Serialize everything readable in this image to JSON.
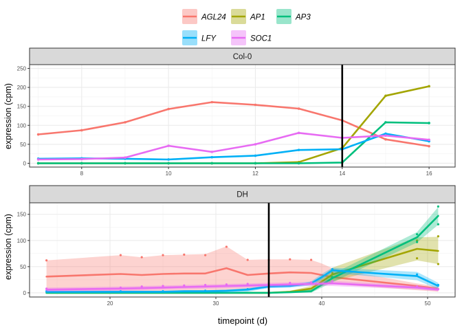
{
  "chart_data": {
    "type": "line",
    "legend": {
      "position": "top",
      "entries": [
        {
          "name": "AGL24",
          "color": "#F8766D"
        },
        {
          "name": "AP1",
          "color": "#A3A500"
        },
        {
          "name": "AP3",
          "color": "#00BF7D"
        },
        {
          "name": "LFY",
          "color": "#00B0F6"
        },
        {
          "name": "SOC1",
          "color": "#E76BF3"
        }
      ]
    },
    "xlabel": "timepoint (d)",
    "ylabel": "expression (cpm)",
    "panels": [
      {
        "title": "Col-0",
        "xlim": [
          6.8,
          16.6
        ],
        "ylim": [
          -10,
          260
        ],
        "xticks": [
          8,
          10,
          12,
          14,
          16
        ],
        "yticks": [
          0,
          50,
          100,
          150,
          200,
          250
        ],
        "vline": 14,
        "x": [
          7,
          8,
          9,
          10,
          11,
          12,
          13,
          14,
          15,
          16
        ],
        "series": [
          {
            "name": "AGL24",
            "values": [
              76,
              87,
              108,
              143,
              161,
              154,
              144,
              113,
              63,
              45
            ]
          },
          {
            "name": "AP1",
            "values": [
              0,
              0,
              0,
              0,
              0,
              0,
              3,
              40,
              178,
              203
            ]
          },
          {
            "name": "AP3",
            "values": [
              0,
              0,
              0,
              0,
              0,
              0,
              0,
              2,
              108,
              106
            ]
          },
          {
            "name": "LFY",
            "values": [
              12,
              13,
              12,
              10,
              16,
              20,
              35,
              37,
              78,
              58
            ]
          },
          {
            "name": "SOC1",
            "values": [
              10,
              11,
              15,
              46,
              30,
              50,
              80,
              67,
              73,
              62
            ]
          }
        ]
      },
      {
        "title": "DH",
        "xlim": [
          12.4,
          52.6
        ],
        "ylim": [
          -8,
          172
        ],
        "xticks": [
          20,
          30,
          40,
          50
        ],
        "yticks": [
          0,
          50,
          100,
          150
        ],
        "vline": 35,
        "series": [
          {
            "name": "AGL24",
            "x": [
              14,
              21,
              23,
              25,
              27,
              29,
              31,
              33,
              35,
              37,
              39,
              40,
              41,
              49,
              51
            ],
            "values": [
              31,
              36,
              34,
              36,
              37,
              37,
              47,
              34,
              37,
              39,
              38,
              34,
              30,
              13,
              8
            ],
            "lower": [
              0,
              0,
              0,
              0,
              0,
              0,
              5,
              5,
              10,
              18,
              20,
              20,
              17,
              5,
              2
            ],
            "upper": [
              62,
              72,
              68,
              72,
              73,
              74,
              89,
              63,
              64,
              64,
              63,
              56,
              47,
              18,
              12
            ],
            "points_x": [
              14,
              21,
              23,
              25,
              27,
              29,
              31,
              33,
              35,
              37,
              39
            ],
            "points_y": [
              62,
              72,
              68,
              72,
              73,
              72,
              88,
              63,
              63,
              64,
              63
            ]
          },
          {
            "name": "AP1",
            "x": [
              14,
              21,
              23,
              25,
              27,
              29,
              31,
              33,
              35,
              37,
              39,
              41,
              49,
              51
            ],
            "values": [
              0,
              0,
              0,
              0,
              0,
              0,
              0,
              0,
              0,
              2,
              8,
              35,
              84,
              80
            ],
            "lower": [
              0,
              0,
              0,
              0,
              0,
              0,
              0,
              0,
              0,
              0,
              3,
              22,
              62,
              55
            ],
            "upper": [
              0,
              0,
              0,
              0,
              0,
              0,
              0,
              0,
              0,
              4,
              13,
              48,
              106,
              107
            ],
            "points_x": [
              41,
              49,
              49,
              51,
              51
            ],
            "points_y": [
              38,
              100,
              66,
              108,
              55
            ]
          },
          {
            "name": "AP3",
            "x": [
              14,
              21,
              23,
              25,
              27,
              29,
              31,
              33,
              35,
              37,
              39,
              41,
              49,
              51
            ],
            "values": [
              0,
              0,
              0,
              0,
              0,
              0,
              0,
              0,
              0,
              1,
              3,
              28,
              106,
              147
            ],
            "lower": [
              0,
              0,
              0,
              0,
              0,
              0,
              0,
              0,
              0,
              0,
              0,
              20,
              96,
              130
            ],
            "upper": [
              0,
              0,
              0,
              0,
              0,
              0,
              0,
              0,
              0,
              2,
              6,
              36,
              116,
              164
            ],
            "points_x": [
              41,
              49,
              49,
              51,
              51
            ],
            "points_y": [
              30,
              112,
              97,
              165,
              131
            ]
          },
          {
            "name": "LFY",
            "x": [
              14,
              21,
              23,
              25,
              27,
              29,
              31,
              33,
              35,
              37,
              39,
              40,
              41,
              49,
              51
            ],
            "values": [
              2,
              2,
              2,
              2,
              3,
              3,
              4,
              6,
              12,
              13,
              18,
              30,
              43,
              32,
              13
            ],
            "lower": [
              0,
              0,
              0,
              0,
              0,
              0,
              0,
              2,
              9,
              10,
              14,
              24,
              38,
              24,
              7
            ],
            "upper": [
              4,
              4,
              4,
              4,
              5,
              5,
              6,
              9,
              15,
              16,
              22,
              36,
              48,
              40,
              19
            ],
            "points_x": [
              14,
              21,
              25,
              29,
              33,
              37,
              41,
              49,
              51
            ],
            "points_y": [
              3,
              3,
              3,
              4,
              7,
              14,
              45,
              35,
              15
            ]
          },
          {
            "name": "SOC1",
            "x": [
              14,
              21,
              23,
              25,
              27,
              29,
              31,
              33,
              35,
              37,
              39,
              41,
              49,
              51
            ],
            "values": [
              6,
              8,
              9,
              10,
              11,
              12,
              13,
              14,
              15,
              16,
              17,
              18,
              10,
              6
            ],
            "lower": [
              2,
              4,
              5,
              6,
              7,
              8,
              9,
              10,
              11,
              12,
              13,
              13,
              6,
              3
            ],
            "upper": [
              10,
              12,
              13,
              14,
              15,
              16,
              17,
              18,
              19,
              20,
              21,
              23,
              14,
              9
            ],
            "points_x": [
              14,
              21,
              23,
              25,
              27,
              29,
              31,
              33,
              35,
              37,
              39,
              41,
              49,
              51
            ],
            "points_y": [
              8,
              10,
              12,
              13,
              14,
              15,
              16,
              17,
              18,
              19,
              20,
              22,
              12,
              7
            ]
          }
        ]
      }
    ]
  }
}
